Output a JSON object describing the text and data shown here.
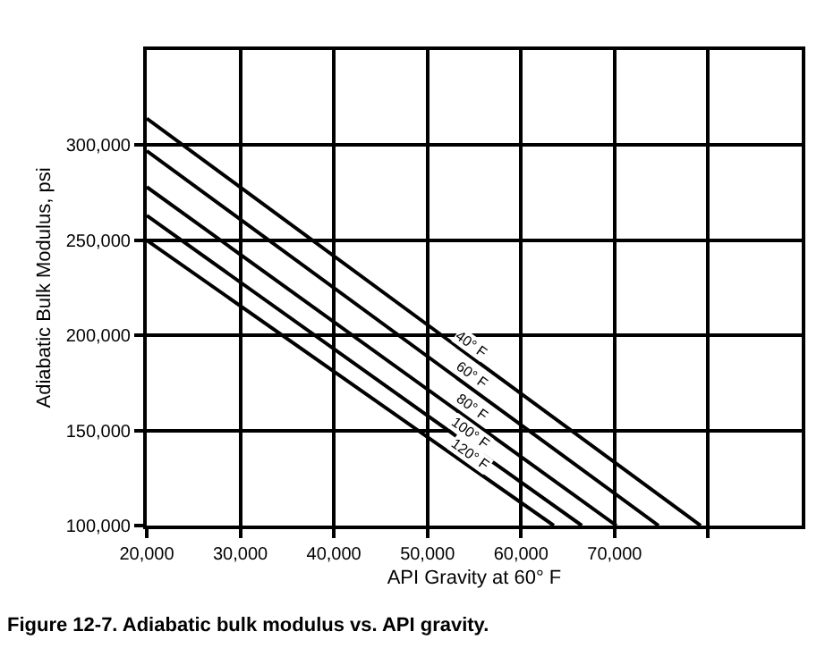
{
  "chart_data": {
    "type": "line",
    "xlabel": "API Gravity at 60° F",
    "ylabel": "Adiabatic Bulk Modulus, psi",
    "annotations": [
      "Figure 12-7. Adiabatic bulk modulus vs. API gravity."
    ],
    "xlim": [
      20000,
      90000
    ],
    "xticks": [
      {
        "value": 20000,
        "label": "20,000"
      },
      {
        "value": 30000,
        "label": "30,000"
      },
      {
        "value": 40000,
        "label": "40,000"
      },
      {
        "value": 50000,
        "label": "50,000"
      },
      {
        "value": 60000,
        "label": "60,000"
      },
      {
        "value": 70000,
        "label": "70,000"
      },
      {
        "value": 80000,
        "label": null
      }
    ],
    "ylim": [
      100000,
      350000
    ],
    "yticks": [
      {
        "value": 100000,
        "label": "100,000"
      },
      {
        "value": 150000,
        "label": "150,000"
      },
      {
        "value": 200000,
        "label": "200,000"
      },
      {
        "value": 250000,
        "label": "250,000"
      },
      {
        "value": 300000,
        "label": "300,000"
      }
    ],
    "grid": true,
    "legend": false,
    "marker": "none",
    "line_style": "solid",
    "series": [
      {
        "name": "40° F",
        "color": "#000000",
        "x": [
          20000,
          79200
        ],
        "values": [
          314000,
          100000
        ]
      },
      {
        "name": "60° F",
        "color": "#000000",
        "x": [
          20000,
          74700
        ],
        "values": [
          297000,
          100000
        ]
      },
      {
        "name": "80° F",
        "color": "#000000",
        "x": [
          20000,
          70200
        ],
        "values": [
          278000,
          100000
        ]
      },
      {
        "name": "100° F",
        "color": "#000000",
        "x": [
          20000,
          66500
        ],
        "values": [
          263000,
          100000
        ]
      },
      {
        "name": "120° F",
        "color": "#000000",
        "x": [
          20000,
          63500
        ],
        "values": [
          250000,
          100000
        ]
      }
    ]
  }
}
